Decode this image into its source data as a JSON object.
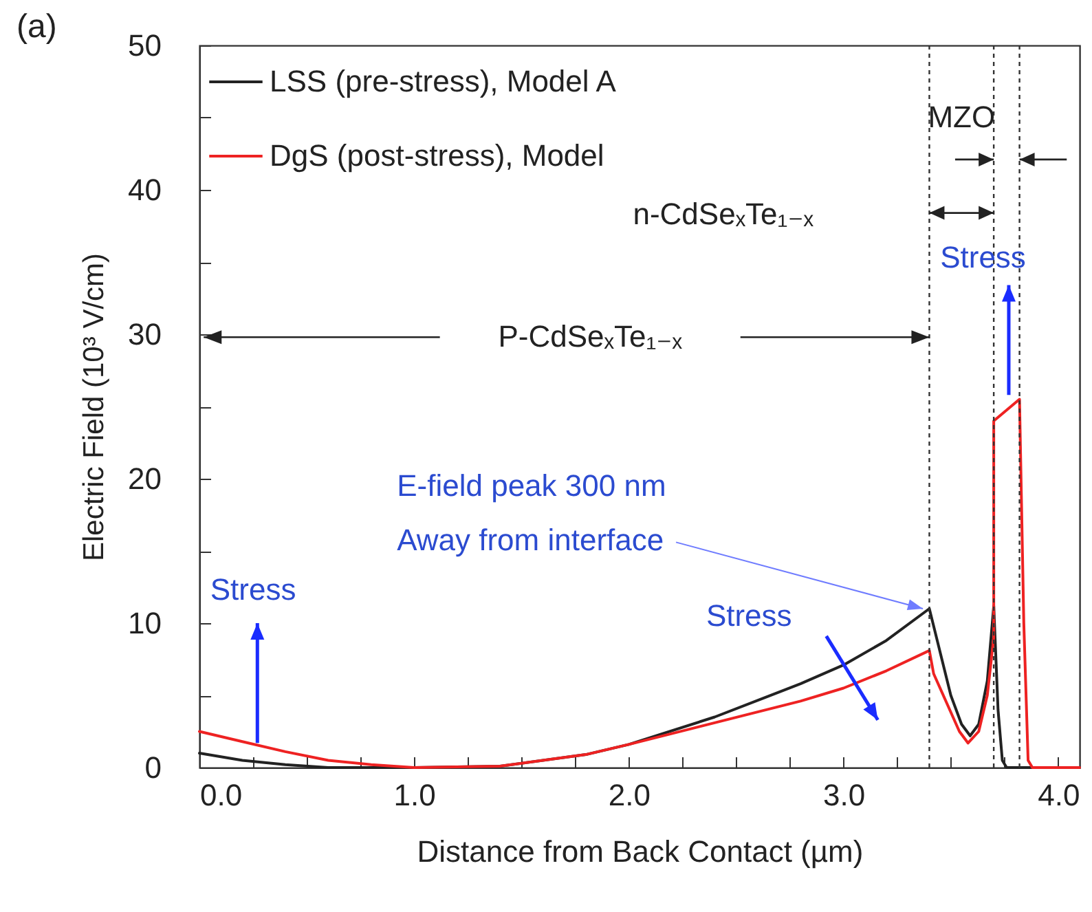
{
  "chart_data": {
    "type": "line",
    "title": "(a)",
    "xlabel": "Distance from Back Contact (µm)",
    "ylabel": "Electric Field (10³ V/cm)",
    "xlim": [
      0,
      4.1
    ],
    "ylim": [
      0,
      50
    ],
    "xticks": [
      {
        "value": 0,
        "label": "0.0"
      },
      {
        "value": 0.25,
        "label": null
      },
      {
        "value": 0.5,
        "label": null
      },
      {
        "value": 0.75,
        "label": null
      },
      {
        "value": 1,
        "label": "1.0"
      },
      {
        "value": 1.25,
        "label": null
      },
      {
        "value": 1.5,
        "label": null
      },
      {
        "value": 1.75,
        "label": null
      },
      {
        "value": 2,
        "label": "2.0"
      },
      {
        "value": 2.25,
        "label": null
      },
      {
        "value": 2.5,
        "label": null
      },
      {
        "value": 2.75,
        "label": null
      },
      {
        "value": 3,
        "label": "3.0"
      },
      {
        "value": 3.25,
        "label": null
      },
      {
        "value": 3.5,
        "label": null
      },
      {
        "value": 3.75,
        "label": null
      },
      {
        "value": 4,
        "label": "4.0"
      }
    ],
    "yticks": [
      0,
      {
        "value": 5,
        "label": null
      },
      10,
      {
        "value": 15,
        "label": null
      },
      20,
      {
        "value": 25,
        "label": null
      },
      30,
      {
        "value": 35,
        "label": null
      },
      40,
      {
        "value": 45,
        "label": null
      },
      50
    ],
    "legend": "top left",
    "series": [
      {
        "name": "LSS (pre-stress), Model A",
        "color": "#222222",
        "x": [
          0,
          0.2,
          0.4,
          0.6,
          1.0,
          1.4,
          1.8,
          2.0,
          2.4,
          2.8,
          3.0,
          3.2,
          3.4,
          3.45,
          3.5,
          3.55,
          3.59,
          3.63,
          3.67,
          3.7,
          3.72,
          3.74,
          3.76,
          4.1
        ],
        "values": [
          1.0,
          0.5,
          0.2,
          0,
          0,
          0.1,
          0.9,
          1.6,
          3.5,
          5.8,
          7.1,
          8.8,
          11.0,
          8.0,
          5.0,
          3.0,
          2.2,
          3.0,
          6.0,
          11.2,
          4.0,
          0.5,
          0,
          0
        ]
      },
      {
        "name": "DgS (post-stress), Model",
        "color": "#ee2222",
        "x": [
          0,
          0.2,
          0.4,
          0.6,
          0.8,
          1.0,
          1.4,
          1.8,
          2.0,
          2.4,
          2.8,
          3.0,
          3.2,
          3.4,
          3.42,
          3.48,
          3.54,
          3.58,
          3.63,
          3.67,
          3.7,
          3.7,
          3.82,
          3.84,
          3.86,
          3.88,
          4.1
        ],
        "values": [
          2.5,
          1.8,
          1.1,
          0.5,
          0.2,
          0,
          0.1,
          0.9,
          1.6,
          3.1,
          4.6,
          5.5,
          6.7,
          8.1,
          6.5,
          4.5,
          2.5,
          1.7,
          2.5,
          5.0,
          9.0,
          24.0,
          25.5,
          10.0,
          0.5,
          0,
          0
        ]
      }
    ],
    "ref_lines": [
      {
        "axis": "x",
        "value": 3.4,
        "color": "#333333",
        "line_style": "dotted"
      },
      {
        "axis": "x",
        "value": 3.7,
        "color": "#333333",
        "line_style": "dotted"
      },
      {
        "axis": "x",
        "value": 3.82,
        "color": "#333333",
        "line_style": "dotted"
      }
    ],
    "annotations": [
      "MZO",
      "n-CdSeₓTe₁₋ₓ",
      "P-CdSeₓTe₁₋ₓ",
      {
        "text": "Stress",
        "x": 3.77,
        "y": 25.5
      },
      "E-field peak 300 nm",
      {
        "text": "Away from interface",
        "x": 3.4,
        "y": 11.0
      },
      "Stress",
      {
        "text": "Stress",
        "x": 0.27,
        "y": 1.7
      }
    ]
  }
}
